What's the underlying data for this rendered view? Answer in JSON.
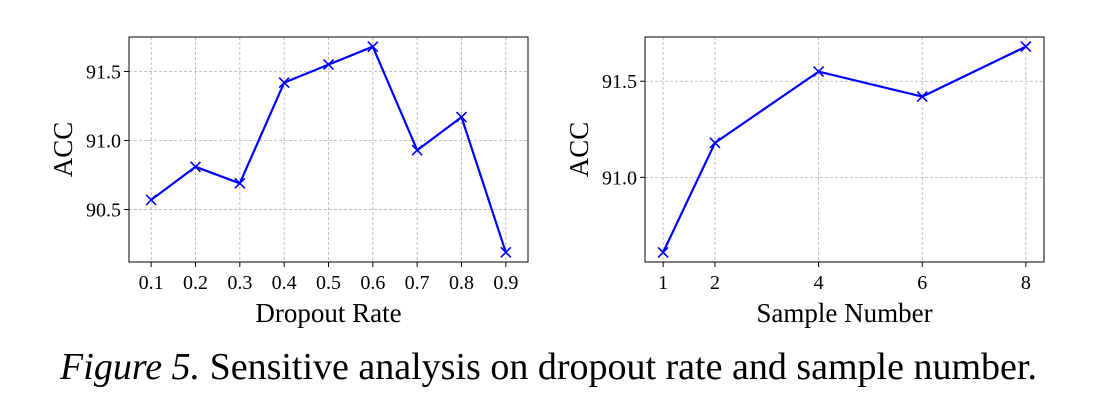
{
  "chart_data": [
    {
      "type": "line",
      "x": [
        0.1,
        0.2,
        0.3,
        0.4,
        0.5,
        0.6,
        0.7,
        0.8,
        0.9
      ],
      "x_tick_labels": [
        "0.1",
        "0.2",
        "0.3",
        "0.4",
        "0.5",
        "0.6",
        "0.7",
        "0.8",
        "0.9"
      ],
      "series": [
        {
          "values": [
            90.57,
            90.81,
            90.69,
            91.42,
            91.55,
            91.68,
            90.93,
            91.17,
            90.19
          ]
        }
      ],
      "xlabel": "Dropout Rate",
      "ylabel": "ACC",
      "xlim": [
        0.05,
        0.95
      ],
      "ylim": [
        90.12,
        91.75
      ],
      "y_ticks": [
        90.5,
        91.0,
        91.5
      ],
      "y_tick_labels": [
        "90.5",
        "91.0",
        "91.5"
      ],
      "grid": true,
      "marker": "x",
      "color": "#0000ff"
    },
    {
      "type": "line",
      "x": [
        1,
        2,
        4,
        6,
        8
      ],
      "x_tick_labels": [
        "1",
        "2",
        "4",
        "6",
        "8"
      ],
      "series": [
        {
          "values": [
            90.61,
            91.18,
            91.55,
            91.42,
            91.68
          ]
        }
      ],
      "xlabel": "Sample Number",
      "ylabel": "ACC",
      "xlim": [
        0.65,
        8.35
      ],
      "ylim": [
        90.56,
        91.73
      ],
      "y_ticks": [
        91.0,
        91.5
      ],
      "y_tick_labels": [
        "91.0",
        "91.5"
      ],
      "grid": true,
      "marker": "x",
      "color": "#0000ff"
    }
  ],
  "caption": {
    "figure_number": "Figure 5.",
    "text": "Sensitive analysis on dropout rate and sample number."
  }
}
